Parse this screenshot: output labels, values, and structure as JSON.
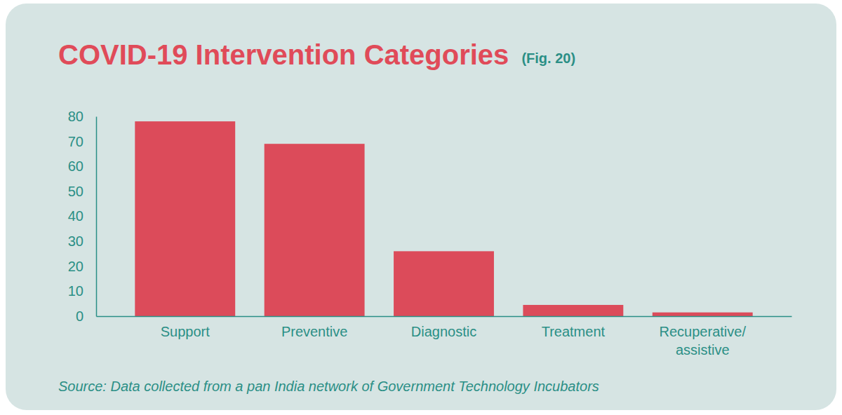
{
  "chart_data": {
    "type": "bar",
    "title": "COVID-19 Intervention Categories",
    "subtitle": "(Fig. 20)",
    "source": "Source: Data collected from a pan India network of Government Technology Incubators",
    "categories": [
      "Support",
      "Preventive",
      "Diagnostic",
      "Treatment",
      "Recuperative/assistive"
    ],
    "values": [
      78,
      69,
      26,
      4.5,
      1.5
    ],
    "color": "#dc4b5a",
    "ylim": [
      0,
      80
    ],
    "yticks": [
      0,
      10,
      20,
      30,
      40,
      50,
      60,
      70,
      80
    ],
    "grid": false
  }
}
